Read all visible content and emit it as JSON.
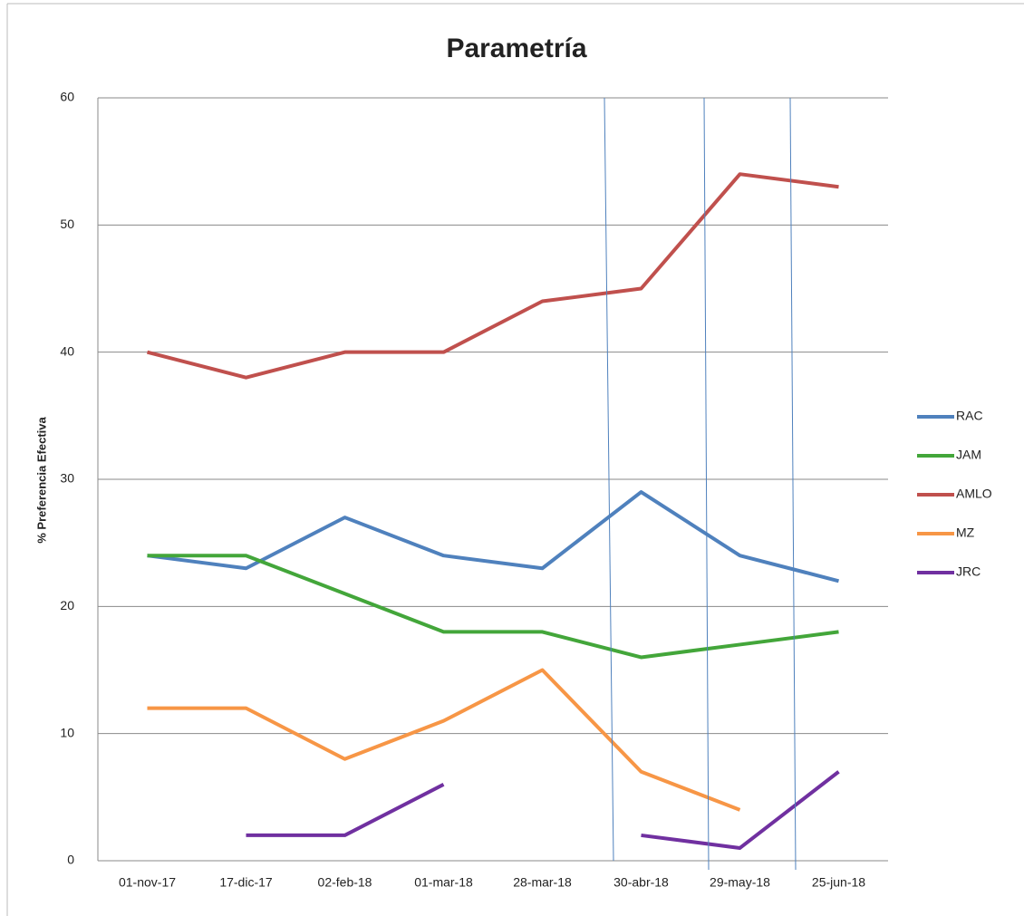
{
  "chart_data": {
    "type": "line",
    "title": "Parametría",
    "y_label": "% Preferencia Efectiva",
    "categories": [
      "01-nov-17",
      "17-dic-17",
      "02-feb-18",
      "01-mar-18",
      "28-mar-18",
      "30-abr-18",
      "29-may-18",
      "25-jun-18"
    ],
    "series": [
      {
        "name": "RAC",
        "color": "#4f81bd",
        "values": [
          24,
          23,
          27,
          24,
          23,
          29,
          24,
          22
        ]
      },
      {
        "name": "JAM",
        "color": "#43a63a",
        "values": [
          24,
          24,
          21,
          18,
          18,
          16,
          17,
          18
        ]
      },
      {
        "name": "AMLO",
        "color": "#c0504d",
        "values": [
          40,
          38,
          40,
          40,
          44,
          45,
          54,
          53
        ]
      },
      {
        "name": "MZ",
        "color": "#f79646",
        "values": [
          12,
          12,
          8,
          11,
          15,
          7,
          4,
          null
        ]
      },
      {
        "name": "JRC",
        "color": "#7030a0",
        "values": [
          null,
          2,
          2,
          6,
          null,
          2,
          1,
          7
        ]
      }
    ],
    "ylim": [
      0,
      60
    ],
    "yticks": [
      0,
      10,
      20,
      30,
      40,
      50,
      60
    ],
    "grid": true,
    "legend": "right"
  }
}
